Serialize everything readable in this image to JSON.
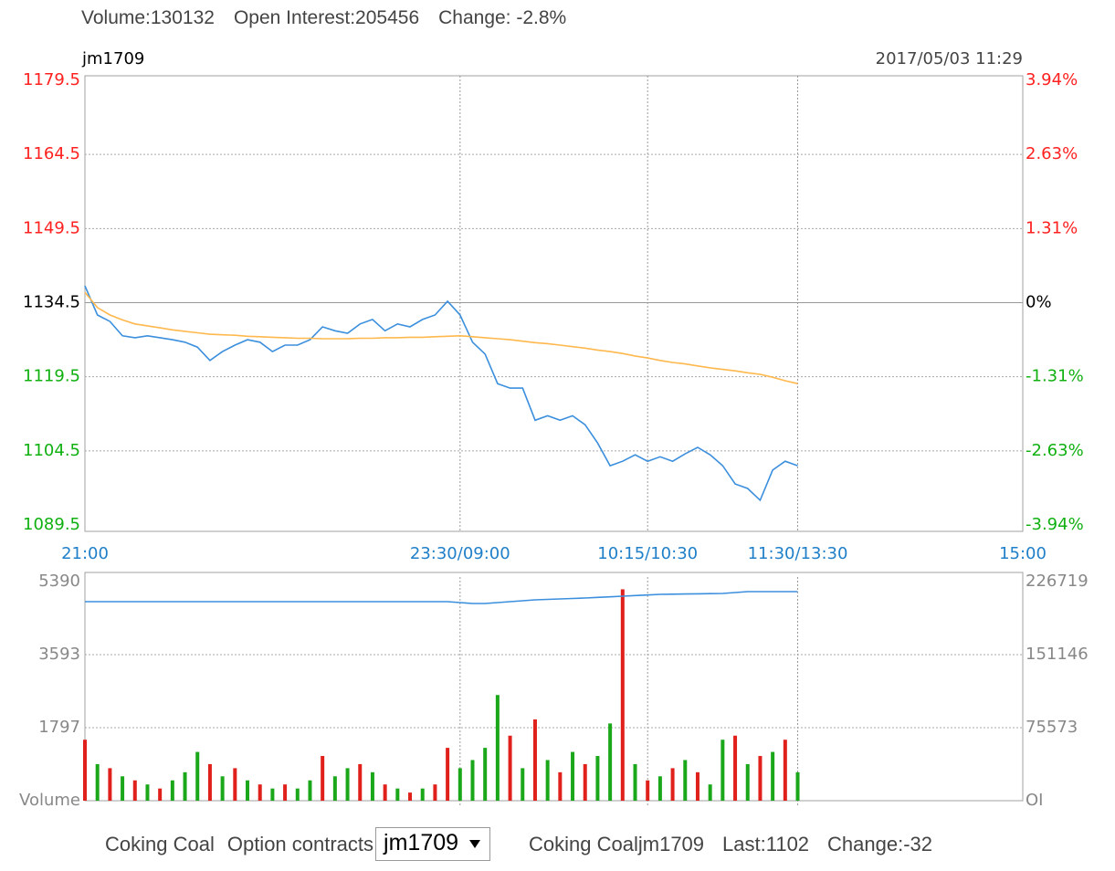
{
  "header": {
    "volume": "Volume:130132",
    "open_interest": "Open Interest:205456",
    "change": "Change: -2.8%"
  },
  "chart_data": [
    {
      "type": "line",
      "title": "jm1709",
      "timestamp": "2017/05/03 11:29",
      "x": [
        0,
        5,
        10,
        15,
        20,
        25,
        30,
        35,
        40,
        45,
        50,
        55,
        60,
        65,
        70,
        75,
        80,
        85,
        90,
        95,
        100,
        105,
        110,
        115,
        120,
        125,
        130,
        135,
        140,
        145,
        150,
        155,
        160,
        165,
        170,
        175,
        180,
        185,
        190,
        195,
        200,
        205,
        210,
        215,
        220,
        225,
        230,
        235,
        240,
        245,
        250,
        255,
        260,
        265,
        270,
        275,
        280,
        285
      ],
      "xlim": [
        0,
        375
      ],
      "xticks": [
        {
          "value": 0,
          "label": "21:00"
        },
        {
          "value": 150,
          "label": "23:30/09:00"
        },
        {
          "value": 225,
          "label": "10:15/10:30"
        },
        {
          "value": 285,
          "label": "11:30/13:30"
        },
        {
          "value": 375,
          "label": "15:00"
        }
      ],
      "ylim": [
        1089.5,
        1179.5
      ],
      "yticks": [
        1179.5,
        1164.5,
        1149.5,
        1134.5,
        1119.5,
        1104.5,
        1089.5
      ],
      "y2lim": [
        -3.94,
        3.94
      ],
      "y2ticks": [
        {
          "value": 3.94,
          "label": "3.94%"
        },
        {
          "value": 2.63,
          "label": "2.63%"
        },
        {
          "value": 1.31,
          "label": "1.31%"
        },
        {
          "value": 0,
          "label": "0%"
        },
        {
          "value": -1.31,
          "label": "-1.31%"
        },
        {
          "value": -2.63,
          "label": "-2.63%"
        },
        {
          "value": -3.94,
          "label": "-3.94%"
        }
      ],
      "grid": true,
      "up_color": "#ff2020",
      "down_color": "#10b010",
      "neutral_color": "#000000",
      "axis_color": "#1f7fc8",
      "series": [
        {
          "color": "#3b8fdd",
          "values": [
            1137.9,
            1132.0,
            1130.7,
            1127.8,
            1127.4,
            1127.8,
            1127.4,
            1127.0,
            1126.5,
            1125.5,
            1122.8,
            1124.6,
            1125.9,
            1127.0,
            1126.5,
            1124.6,
            1125.9,
            1125.9,
            1127.0,
            1129.6,
            1128.8,
            1128.3,
            1130.2,
            1131.1,
            1128.8,
            1130.2,
            1129.6,
            1131.1,
            1132.0,
            1134.8,
            1132.0,
            1126.5,
            1124.1,
            1118.1,
            1117.2,
            1117.2,
            1110.7,
            1111.6,
            1110.7,
            1111.6,
            1109.8,
            1106.1,
            1101.5,
            1102.4,
            1103.7,
            1102.4,
            1103.3,
            1102.4,
            1103.9,
            1105.2,
            1103.7,
            1101.5,
            1097.8,
            1096.9,
            1094.5,
            1100.6,
            1102.4,
            1101.5
          ]
        },
        {
          "color": "#ffb84d",
          "values": [
            1136.6,
            1133.5,
            1132.0,
            1131.0,
            1130.2,
            1129.8,
            1129.4,
            1129.0,
            1128.7,
            1128.4,
            1128.1,
            1128.0,
            1127.9,
            1127.7,
            1127.6,
            1127.5,
            1127.4,
            1127.3,
            1127.3,
            1127.2,
            1127.2,
            1127.2,
            1127.3,
            1127.3,
            1127.4,
            1127.4,
            1127.5,
            1127.5,
            1127.6,
            1127.7,
            1127.8,
            1127.6,
            1127.4,
            1127.2,
            1127.0,
            1126.7,
            1126.4,
            1126.2,
            1125.9,
            1125.6,
            1125.3,
            1124.9,
            1124.6,
            1124.2,
            1123.7,
            1123.3,
            1122.8,
            1122.4,
            1122.1,
            1121.7,
            1121.3,
            1121.0,
            1120.7,
            1120.3,
            1120.0,
            1119.4,
            1118.7,
            1118.1
          ]
        }
      ]
    },
    {
      "type": "bar",
      "x": [
        0,
        5,
        10,
        15,
        20,
        25,
        30,
        35,
        40,
        45,
        50,
        55,
        60,
        65,
        70,
        75,
        80,
        85,
        90,
        95,
        100,
        105,
        110,
        115,
        120,
        125,
        130,
        135,
        140,
        145,
        150,
        155,
        160,
        165,
        170,
        175,
        180,
        185,
        190,
        195,
        200,
        205,
        210,
        215,
        220,
        225,
        230,
        235,
        240,
        245,
        250,
        255,
        260,
        265,
        270,
        275,
        280,
        285
      ],
      "xlim": [
        0,
        375
      ],
      "ylim": [
        0,
        5390
      ],
      "yticks": [
        {
          "value": 5390,
          "label": "5390"
        },
        {
          "value": 3593,
          "label": "3593"
        },
        {
          "value": 1797,
          "label": "1797"
        },
        {
          "value": 0,
          "label": "Volume"
        }
      ],
      "y2lim": [
        0,
        226719
      ],
      "y2ticks": [
        226719,
        151146,
        75573,
        {
          "value": 0,
          "label": "OI"
        }
      ],
      "grid": true,
      "tick_color": "#888888",
      "series": [
        {
          "type": "bar",
          "values": [
            1500,
            900,
            800,
            600,
            500,
            400,
            300,
            500,
            700,
            1200,
            900,
            600,
            800,
            500,
            400,
            300,
            400,
            300,
            500,
            1100,
            600,
            800,
            900,
            700,
            400,
            300,
            200,
            300,
            400,
            1300,
            800,
            1000,
            1300,
            2600,
            1600,
            800,
            2000,
            1000,
            700,
            1200,
            900,
            1100,
            1900,
            5200,
            900,
            500,
            600,
            800,
            1000,
            700,
            400,
            1500,
            1600,
            900,
            1100,
            1200,
            1500,
            700
          ],
          "colors": [
            "#e0201b",
            "#1aa81a",
            "#e0201b",
            "#1aa81a",
            "#e0201b",
            "#1aa81a",
            "#e0201b",
            "#1aa81a",
            "#1aa81a",
            "#1aa81a",
            "#e0201b",
            "#1aa81a",
            "#e0201b",
            "#1aa81a",
            "#e0201b",
            "#1aa81a",
            "#e0201b",
            "#1aa81a",
            "#1aa81a",
            "#e0201b",
            "#1aa81a",
            "#1aa81a",
            "#e0201b",
            "#1aa81a",
            "#e0201b",
            "#1aa81a",
            "#e0201b",
            "#1aa81a",
            "#e0201b",
            "#e0201b",
            "#1aa81a",
            "#1aa81a",
            "#1aa81a",
            "#1aa81a",
            "#e0201b",
            "#1aa81a",
            "#e0201b",
            "#1aa81a",
            "#e0201b",
            "#1aa81a",
            "#e0201b",
            "#1aa81a",
            "#1aa81a",
            "#e0201b",
            "#1aa81a",
            "#e0201b",
            "#1aa81a",
            "#e0201b",
            "#1aa81a",
            "#e0201b",
            "#1aa81a",
            "#1aa81a",
            "#e0201b",
            "#1aa81a",
            "#e0201b",
            "#1aa81a",
            "#e0201b",
            "#1aa81a"
          ]
        },
        {
          "type": "line",
          "axis": "y2",
          "color": "#3b8fdd",
          "values": [
            205936,
            205936,
            205936,
            205936,
            205936,
            205936,
            205936,
            205936,
            205936,
            205936,
            205936,
            205936,
            205936,
            205936,
            205936,
            205936,
            205936,
            205936,
            205936,
            205936,
            205936,
            205936,
            205936,
            205936,
            205936,
            205936,
            205936,
            205936,
            205936,
            205936,
            205000,
            204047,
            204047,
            204990,
            205936,
            206880,
            207826,
            208300,
            208770,
            209243,
            209716,
            210346,
            210976,
            211605,
            212235,
            212865,
            213495,
            213684,
            213873,
            214062,
            214251,
            214440,
            215385,
            216329,
            216329,
            216329,
            216329,
            216329
          ]
        }
      ]
    }
  ],
  "footer": {
    "product": "Coking Coal",
    "option": "Option contracts",
    "contract": "jm1709",
    "name": "Coking Coaljm1709",
    "last": "Last:1102",
    "change": "Change:-32"
  }
}
